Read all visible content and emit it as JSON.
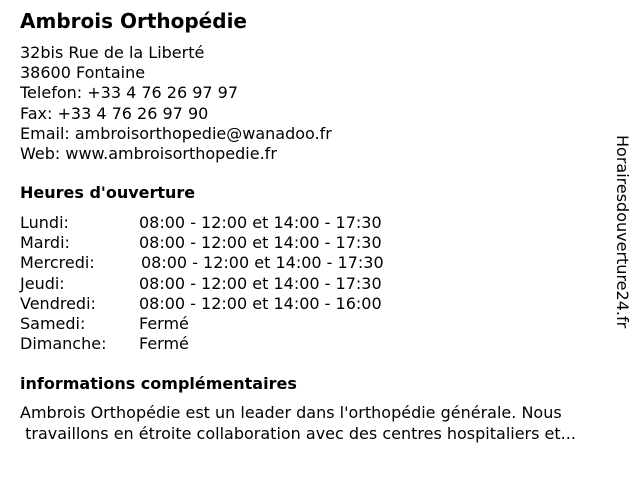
{
  "business": {
    "name": "Ambrois Orthopédie",
    "address_line1": "32bis Rue de la Liberté",
    "address_line2": "38600 Fontaine",
    "phone": "Telefon: +33 4 76 26 97 97",
    "fax": "Fax: +33 4 76 26 97 90",
    "email": "Email: ambroisorthopedie@wanadoo.fr",
    "web": "Web: www.ambroisorthopedie.fr"
  },
  "hours": {
    "heading": "Heures d'ouverture",
    "rows": [
      {
        "day": "Lundi:",
        "time": "08:00 - 12:00 et 14:00 - 17:30"
      },
      {
        "day": "Mardi:",
        "time": "08:00 - 12:00 et 14:00 - 17:30"
      },
      {
        "day": "Mercredi:",
        "time": "08:00 - 12:00 et 14:00 - 17:30"
      },
      {
        "day": "Jeudi:",
        "time": "08:00 - 12:00 et 14:00 - 17:30"
      },
      {
        "day": "Vendredi:",
        "time": "08:00 - 12:00 et 14:00 - 16:00"
      },
      {
        "day": "Samedi:",
        "time": "Fermé"
      },
      {
        "day": "Dimanche:",
        "time": "Fermé"
      }
    ]
  },
  "info": {
    "heading": "informations complémentaires",
    "line1": "Ambrois Orthopédie est un leader dans l'orthopédie générale. Nous",
    "line2": " travaillons en étroite collaboration avec des centres hospitaliers et..."
  },
  "watermark": "Horairesdouverture24.fr"
}
